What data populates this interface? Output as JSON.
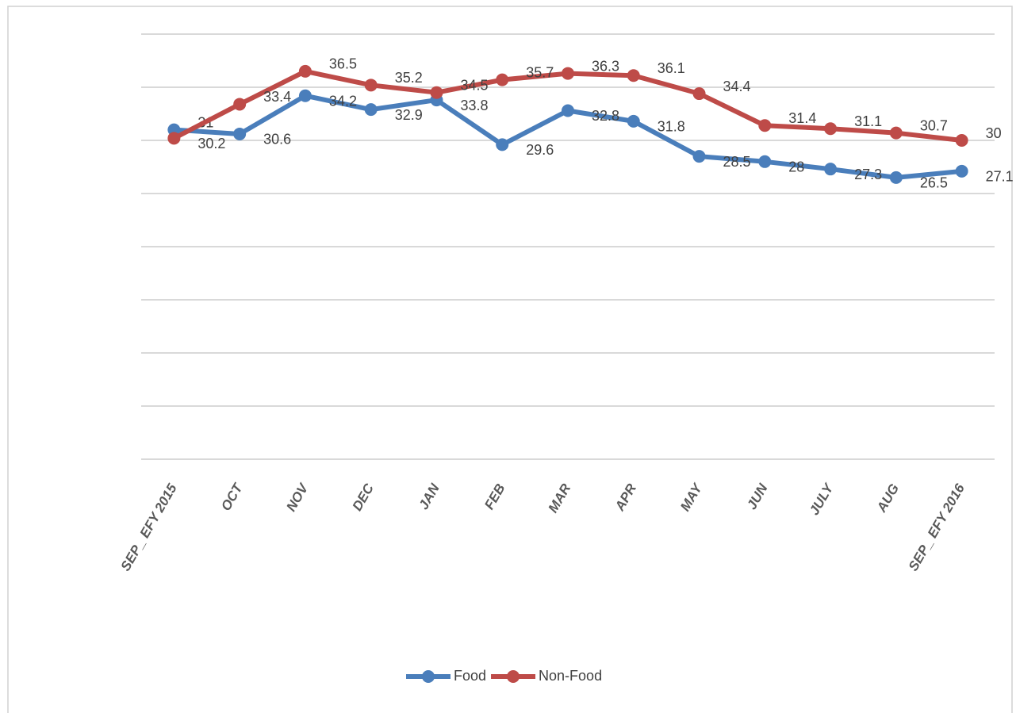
{
  "chart_data": {
    "type": "line",
    "categories": [
      "SEP_ EFY 2015",
      "OCT",
      "NOV",
      "DEC",
      "JAN",
      "FEB",
      "MAR",
      "APR",
      "MAY",
      "JUN",
      "JULY",
      "AUG",
      "SEP_ EFY 2016"
    ],
    "series": [
      {
        "name": "Food",
        "color": "#4a7ebb",
        "values": [
          31.0,
          30.6,
          34.2,
          32.9,
          33.8,
          29.6,
          32.8,
          31.8,
          28.5,
          28.0,
          27.3,
          26.5,
          27.1
        ]
      },
      {
        "name": "Non-Food",
        "color": "#be4b48",
        "values": [
          30.2,
          33.4,
          36.5,
          35.2,
          34.5,
          35.7,
          36.3,
          36.1,
          34.4,
          31.4,
          31.1,
          30.7,
          30.0
        ]
      }
    ],
    "ylim": [
      0,
      40
    ],
    "yticks": [
      0,
      5,
      10,
      15,
      20,
      25,
      30,
      35,
      40
    ],
    "grid": true,
    "legend": "bottom"
  }
}
